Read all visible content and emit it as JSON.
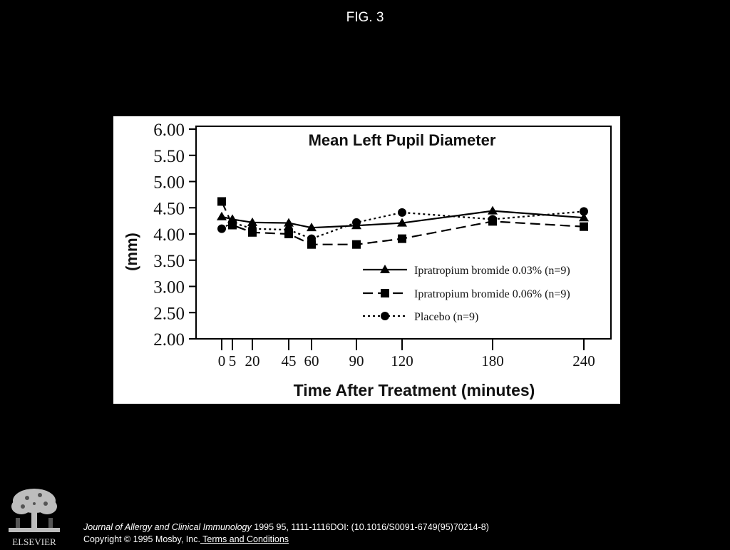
{
  "page": {
    "figure_label": "FIG. 3"
  },
  "chart_data": {
    "type": "line",
    "title": "Mean Left Pupil Diameter",
    "xlabel": "Time After Treatment (minutes)",
    "ylabel": "(mm)",
    "ylim": [
      2.0,
      6.0
    ],
    "yticks": [
      "2.00",
      "2.50",
      "3.00",
      "3.50",
      "4.00",
      "4.50",
      "5.00",
      "5.50",
      "6.00"
    ],
    "xticks": [
      0,
      5,
      20,
      45,
      60,
      90,
      120,
      180,
      240
    ],
    "x": [
      0,
      5,
      20,
      45,
      60,
      90,
      120,
      180,
      240
    ],
    "legend_position": "bottom-right",
    "grid": false,
    "series": [
      {
        "name": "Ipratropium bromide 0.03% (n=9)",
        "marker": "triangle",
        "dash": "solid",
        "values": [
          4.33,
          4.28,
          4.22,
          4.21,
          4.12,
          4.16,
          4.21,
          4.44,
          4.31
        ]
      },
      {
        "name": "Ipratropium bromide 0.06% (n=9)",
        "marker": "square",
        "dash": "dashed",
        "values": [
          4.62,
          4.17,
          4.03,
          4.0,
          3.8,
          3.8,
          3.91,
          4.24,
          4.14
        ]
      },
      {
        "name": "Placebo (n=9)",
        "marker": "circle",
        "dash": "dotted",
        "values": [
          4.1,
          4.22,
          4.1,
          4.08,
          3.91,
          4.22,
          4.41,
          4.28,
          4.43
        ]
      }
    ]
  },
  "footer": {
    "journal": "Journal of Allergy and Clinical Immunology",
    "citation": " 1995 95, 1111-1116DOI: (10.1016/S0091-6749(95)70214-8)",
    "copyright": "Copyright © 1995 Mosby, Inc.",
    "terms_link": " Terms and Conditions"
  },
  "logo": {
    "text": "ELSEVIER"
  }
}
